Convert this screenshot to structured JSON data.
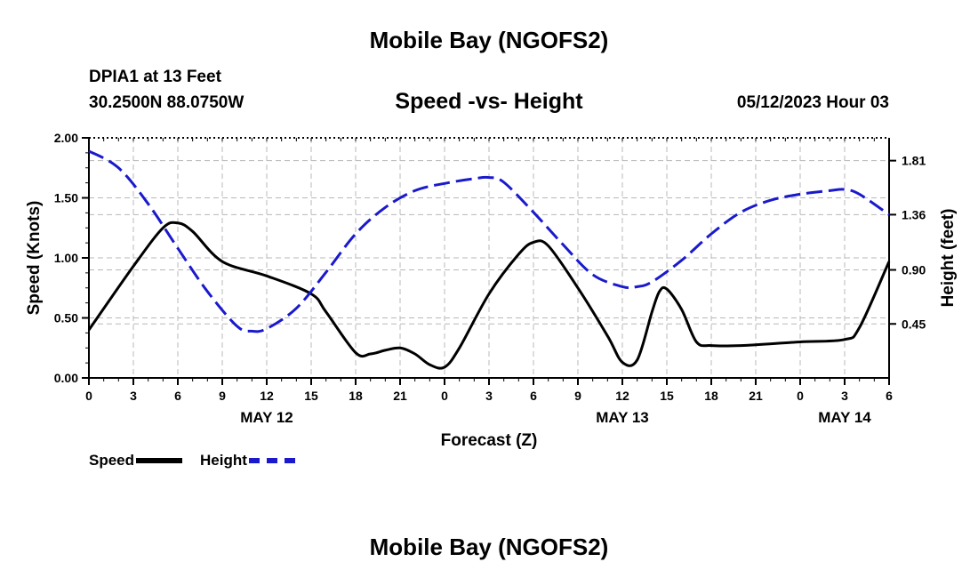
{
  "header": {
    "title": "Mobile Bay (NGOFS2)",
    "station": "DPIA1 at 13 Feet",
    "coords": "30.2500N  88.0750W",
    "chart_title": "Speed -vs- Height",
    "forecast_time": "05/12/2023 Hour 03"
  },
  "footer": {
    "title": "Mobile Bay (NGOFS2)"
  },
  "legend": {
    "speed_label": "Speed",
    "height_label": "Height"
  },
  "colors": {
    "speed": "#000000",
    "height": "#1a1acc",
    "grid": "#b8b8b8"
  },
  "chart_data": {
    "type": "line",
    "title": "Speed -vs- Height",
    "xlabel": "Forecast (Z)",
    "ylabel": "Speed (Knots)",
    "ylabel_right": "Height (feet)",
    "xlim": [
      0,
      54
    ],
    "ylim": [
      0,
      2.0
    ],
    "ylim_right": [
      0.0,
      2.0
    ],
    "x_tick_values": [
      0,
      3,
      6,
      9,
      12,
      15,
      18,
      21,
      24,
      27,
      30,
      33,
      36,
      39,
      42,
      45,
      48,
      51,
      54
    ],
    "x_tick_labels": [
      "0",
      "3",
      "6",
      "9",
      "12",
      "15",
      "18",
      "21",
      "0",
      "3",
      "6",
      "9",
      "12",
      "15",
      "18",
      "21",
      "0",
      "3",
      "6"
    ],
    "date_labels": [
      {
        "x": 12,
        "label": "MAY 12"
      },
      {
        "x": 36,
        "label": "MAY 13"
      },
      {
        "x": 51,
        "label": "MAY 14"
      }
    ],
    "y_ticks": [
      "0.00",
      "0.50",
      "1.00",
      "1.50",
      "2.00"
    ],
    "y_tick_values": [
      0,
      0.5,
      1.0,
      1.5,
      2.0
    ],
    "y_right_ticks": [
      "0.45",
      "0.90",
      "1.36",
      "1.81"
    ],
    "y_right_tick_values": [
      0.45,
      0.9,
      1.36,
      1.81
    ],
    "grid": true,
    "series": [
      {
        "name": "Speed",
        "axis": "left",
        "x": [
          0,
          3,
          5,
          6,
          7,
          9,
          12,
          15,
          16,
          18,
          19,
          20,
          21,
          22,
          23,
          24,
          25,
          27,
          29,
          30,
          31,
          33,
          35,
          36,
          37,
          38,
          38.5,
          39,
          40,
          41,
          42,
          44,
          48,
          51,
          52,
          54
        ],
        "values": [
          0.4,
          0.93,
          1.25,
          1.29,
          1.22,
          0.97,
          0.85,
          0.7,
          0.55,
          0.21,
          0.2,
          0.23,
          0.25,
          0.2,
          0.11,
          0.09,
          0.25,
          0.7,
          1.03,
          1.13,
          1.1,
          0.75,
          0.35,
          0.13,
          0.15,
          0.55,
          0.72,
          0.74,
          0.57,
          0.3,
          0.27,
          0.27,
          0.3,
          0.32,
          0.42,
          0.97
        ]
      },
      {
        "name": "Height",
        "axis": "right",
        "x": [
          0,
          2,
          4,
          6,
          8,
          10,
          11,
          12,
          14,
          16,
          18,
          20,
          22,
          24,
          26,
          27,
          28,
          30,
          32,
          34,
          36,
          37,
          38,
          40,
          42,
          44,
          46,
          48,
          50,
          51,
          52,
          54
        ],
        "values": [
          1.89,
          1.75,
          1.45,
          1.08,
          0.72,
          0.43,
          0.39,
          0.41,
          0.58,
          0.88,
          1.2,
          1.42,
          1.56,
          1.62,
          1.66,
          1.67,
          1.63,
          1.38,
          1.11,
          0.86,
          0.76,
          0.76,
          0.8,
          0.98,
          1.2,
          1.38,
          1.48,
          1.53,
          1.56,
          1.57,
          1.53,
          1.36
        ]
      }
    ]
  }
}
